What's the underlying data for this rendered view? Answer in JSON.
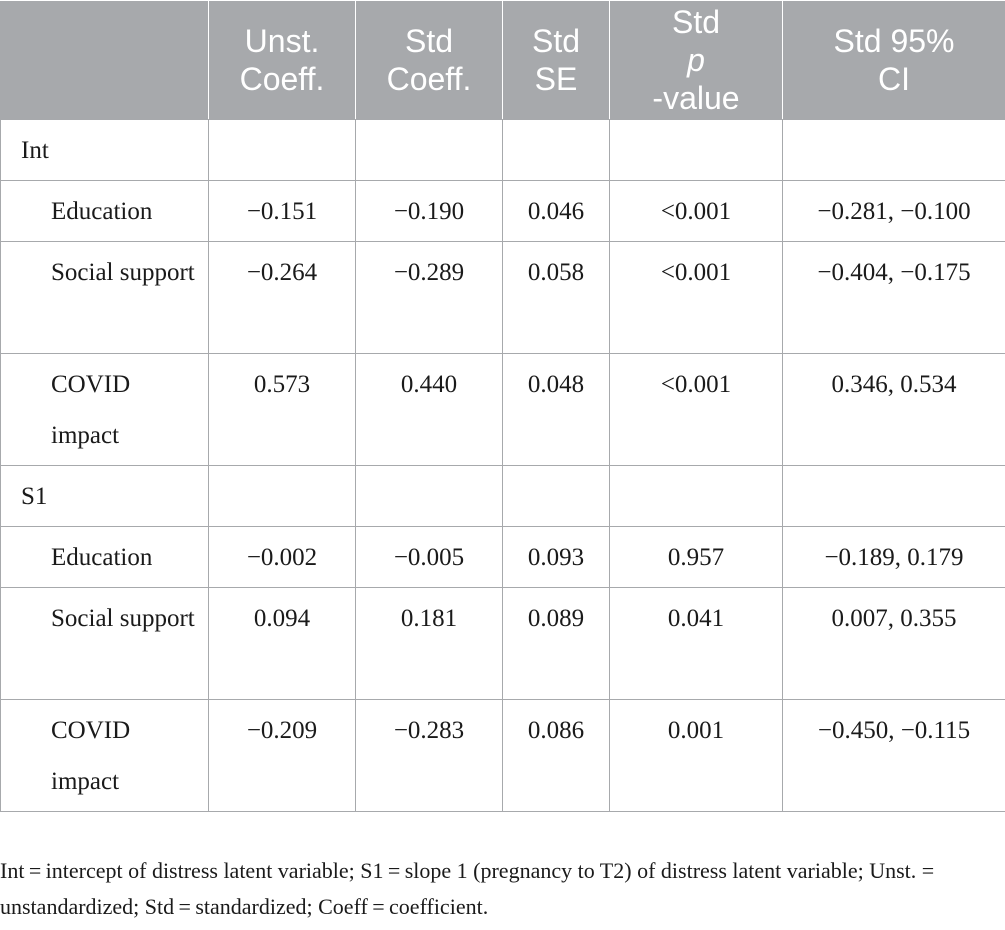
{
  "table": {
    "headers": [
      {
        "line1": "",
        "line2": ""
      },
      {
        "line1": "Unst.",
        "line2": "Coeff."
      },
      {
        "line1": "Std",
        "line2": "Coeff."
      },
      {
        "line1": "Std",
        "line2": "SE"
      },
      {
        "line1": "Std",
        "line2_italic": "p",
        "line2": "-value"
      },
      {
        "line1": "Std 95%",
        "line2": "CI"
      }
    ],
    "groups": [
      {
        "label": "Int",
        "rows": [
          {
            "label": "Education",
            "unst": "−0.151",
            "std": "−0.190",
            "se": "0.046",
            "p": "<0.001",
            "ci": "−0.281, −0.100"
          },
          {
            "label": "Social support",
            "unst": "−0.264",
            "std": "−0.289",
            "se": "0.058",
            "p": "<0.001",
            "ci": "−0.404, −0.175"
          },
          {
            "label": "COVID impact",
            "unst": "0.573",
            "std": "0.440",
            "se": "0.048",
            "p": "<0.001",
            "ci": "0.346, 0.534"
          }
        ]
      },
      {
        "label": "S1",
        "rows": [
          {
            "label": "Education",
            "unst": "−0.002",
            "std": "−0.005",
            "se": "0.093",
            "p": "0.957",
            "ci": "−0.189, 0.179"
          },
          {
            "label": "Social support",
            "unst": "0.094",
            "std": "0.181",
            "se": "0.089",
            "p": "0.041",
            "ci": "0.007, 0.355"
          },
          {
            "label": "COVID impact",
            "unst": "−0.209",
            "std": "−0.283",
            "se": "0.086",
            "p": "0.001",
            "ci": "−0.450, −0.115"
          }
        ]
      }
    ]
  },
  "footnote": "Int = intercept of distress latent variable; S1 = slope 1 (pregnancy to T2) of distress latent variable; Unst. = unstandardized; Std = standardized; Coeff = coefficient."
}
